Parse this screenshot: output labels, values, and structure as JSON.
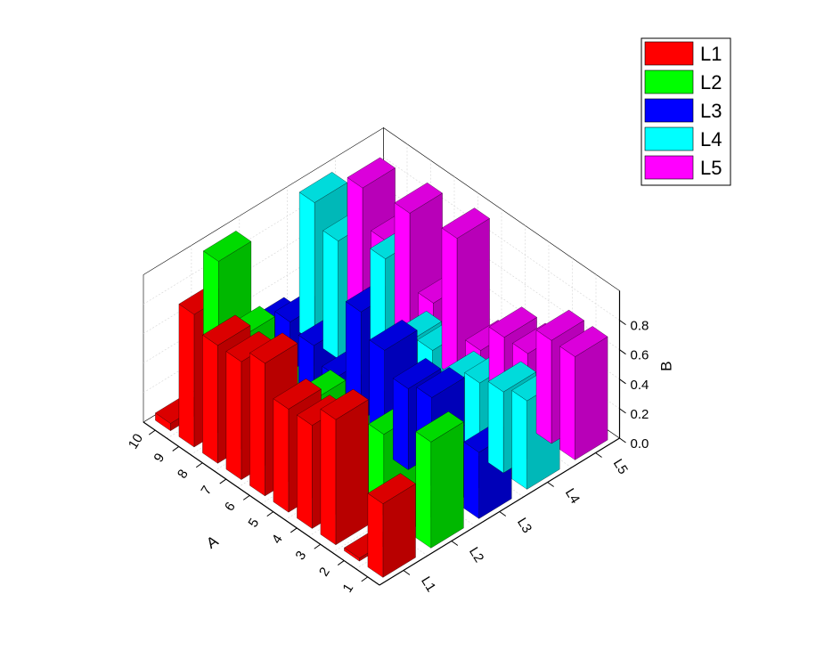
{
  "chart_data": {
    "type": "bar3d",
    "x_axis": {
      "label": "A",
      "categories": [
        "1",
        "2",
        "3",
        "4",
        "5",
        "6",
        "7",
        "8",
        "9",
        "10"
      ]
    },
    "y_axis": {
      "label": "",
      "categories": [
        "L1",
        "L2",
        "L3",
        "L4",
        "L5"
      ]
    },
    "z_axis": {
      "label": "B",
      "ticks": [
        "0.0",
        "0.2",
        "0.4",
        "0.6",
        "0.8"
      ],
      "range": [
        0,
        1
      ]
    },
    "series": [
      {
        "name": "L1",
        "color": "#ff0000",
        "values": [
          0.5,
          0.02,
          0.85,
          0.7,
          0.7,
          0.9,
          0.8,
          0.8,
          0.9,
          0.05
        ]
      },
      {
        "name": "L2",
        "color": "#00ff00",
        "values": [
          0.72,
          0.1,
          0.55,
          0.4,
          0.3,
          0.45,
          0.4,
          0.3,
          0.55,
          0.95
        ]
      },
      {
        "name": "L3",
        "color": "#0000ff",
        "values": [
          0.45,
          0.35,
          0.6,
          0.55,
          0.7,
          0.85,
          0.3,
          0.4,
          0.45,
          0.3
        ]
      },
      {
        "name": "L4",
        "color": "#00ffff",
        "values": [
          0.6,
          0.55,
          0.5,
          0.4,
          0.5,
          0.45,
          0.9,
          0.4,
          0.8,
          0.95
        ]
      },
      {
        "name": "L5",
        "color": "#ff00ff",
        "values": [
          0.7,
          0.7,
          0.5,
          0.5,
          0.3,
          0.95,
          0.4,
          0.9,
          0.6,
          0.85
        ]
      }
    ],
    "legend": {
      "position": "top-right",
      "entries": [
        "L1",
        "L2",
        "L3",
        "L4",
        "L5"
      ]
    }
  }
}
